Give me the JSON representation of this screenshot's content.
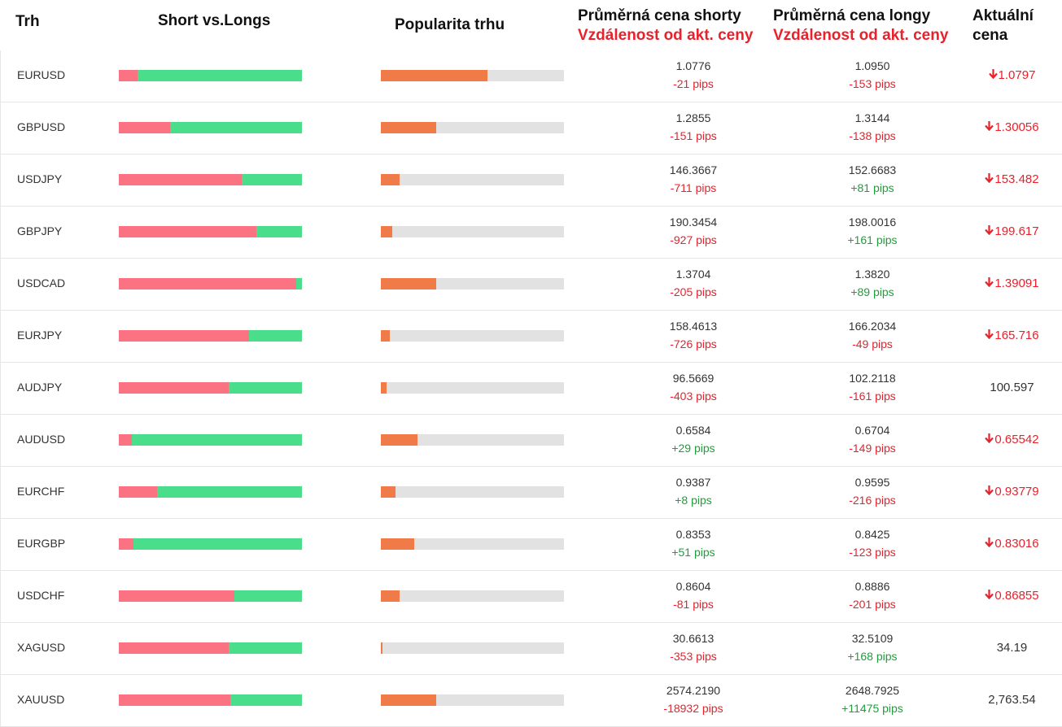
{
  "headers": {
    "market": "Trh",
    "short_vs_longs": "Short vs.Longs",
    "popularity": "Popularita trhu",
    "avg_short": "Průměrná cena shorty",
    "avg_short_sub": "Vzdálenost od akt. ceny",
    "avg_long": "Průměrná cena longy",
    "avg_long_sub": "Vzdálenost od akt. ceny",
    "current_1": "Aktuální",
    "current_2": "cena"
  },
  "colors": {
    "short": "#fb7282",
    "long": "#4ade8a",
    "popularity": "#f07a48",
    "negative": "#e8212b",
    "positive": "#1e9e3a"
  },
  "rows": [
    {
      "symbol": "EURUSD",
      "short_pct": 10,
      "popularity_pct": 58,
      "avg_short": "1.0776",
      "avg_short_pips": "-21 pips",
      "avg_short_sign": "neg",
      "avg_long": "1.0950",
      "avg_long_pips": "-153 pips",
      "avg_long_sign": "neg",
      "current": "1.0797",
      "trend": "down"
    },
    {
      "symbol": "GBPUSD",
      "short_pct": 28,
      "popularity_pct": 30,
      "avg_short": "1.2855",
      "avg_short_pips": "-151 pips",
      "avg_short_sign": "neg",
      "avg_long": "1.3144",
      "avg_long_pips": "-138 pips",
      "avg_long_sign": "neg",
      "current": "1.30056",
      "trend": "down"
    },
    {
      "symbol": "USDJPY",
      "short_pct": 67,
      "popularity_pct": 10,
      "avg_short": "146.3667",
      "avg_short_pips": "-711 pips",
      "avg_short_sign": "neg",
      "avg_long": "152.6683",
      "avg_long_pips": "+81 pips",
      "avg_long_sign": "pos",
      "current": "153.482",
      "trend": "down"
    },
    {
      "symbol": "GBPJPY",
      "short_pct": 75,
      "popularity_pct": 6,
      "avg_short": "190.3454",
      "avg_short_pips": "-927 pips",
      "avg_short_sign": "neg",
      "avg_long": "198.0016",
      "avg_long_pips": "+161 pips",
      "avg_long_sign": "pos",
      "current": "199.617",
      "trend": "down"
    },
    {
      "symbol": "USDCAD",
      "short_pct": 97,
      "popularity_pct": 30,
      "avg_short": "1.3704",
      "avg_short_pips": "-205 pips",
      "avg_short_sign": "neg",
      "avg_long": "1.3820",
      "avg_long_pips": "+89 pips",
      "avg_long_sign": "pos",
      "current": "1.39091",
      "trend": "down"
    },
    {
      "symbol": "EURJPY",
      "short_pct": 71,
      "popularity_pct": 5,
      "avg_short": "158.4613",
      "avg_short_pips": "-726 pips",
      "avg_short_sign": "neg",
      "avg_long": "166.2034",
      "avg_long_pips": "-49 pips",
      "avg_long_sign": "neg",
      "current": "165.716",
      "trend": "down"
    },
    {
      "symbol": "AUDJPY",
      "short_pct": 60,
      "popularity_pct": 3,
      "avg_short": "96.5669",
      "avg_short_pips": "-403 pips",
      "avg_short_sign": "neg",
      "avg_long": "102.2118",
      "avg_long_pips": "-161 pips",
      "avg_long_sign": "neg",
      "current": "100.597",
      "trend": "flat"
    },
    {
      "symbol": "AUDUSD",
      "short_pct": 7,
      "popularity_pct": 20,
      "avg_short": "0.6584",
      "avg_short_pips": "+29 pips",
      "avg_short_sign": "pos",
      "avg_long": "0.6704",
      "avg_long_pips": "-149 pips",
      "avg_long_sign": "neg",
      "current": "0.65542",
      "trend": "down"
    },
    {
      "symbol": "EURCHF",
      "short_pct": 21,
      "popularity_pct": 8,
      "avg_short": "0.9387",
      "avg_short_pips": "+8 pips",
      "avg_short_sign": "pos",
      "avg_long": "0.9595",
      "avg_long_pips": "-216 pips",
      "avg_long_sign": "neg",
      "current": "0.93779",
      "trend": "down"
    },
    {
      "symbol": "EURGBP",
      "short_pct": 8,
      "popularity_pct": 18,
      "avg_short": "0.8353",
      "avg_short_pips": "+51 pips",
      "avg_short_sign": "pos",
      "avg_long": "0.8425",
      "avg_long_pips": "-123 pips",
      "avg_long_sign": "neg",
      "current": "0.83016",
      "trend": "down"
    },
    {
      "symbol": "USDCHF",
      "short_pct": 63,
      "popularity_pct": 10,
      "avg_short": "0.8604",
      "avg_short_pips": "-81 pips",
      "avg_short_sign": "neg",
      "avg_long": "0.8886",
      "avg_long_pips": "-201 pips",
      "avg_long_sign": "neg",
      "current": "0.86855",
      "trend": "down"
    },
    {
      "symbol": "XAGUSD",
      "short_pct": 60,
      "popularity_pct": 1,
      "avg_short": "30.6613",
      "avg_short_pips": "-353 pips",
      "avg_short_sign": "neg",
      "avg_long": "32.5109",
      "avg_long_pips": "+168 pips",
      "avg_long_sign": "pos",
      "current": "34.19",
      "trend": "flat"
    },
    {
      "symbol": "XAUUSD",
      "short_pct": 61,
      "popularity_pct": 30,
      "avg_short": "2574.2190",
      "avg_short_pips": "-18932 pips",
      "avg_short_sign": "neg",
      "avg_long": "2648.7925",
      "avg_long_pips": "+11475 pips",
      "avg_long_sign": "pos",
      "current": "2,763.54",
      "trend": "flat"
    }
  ]
}
